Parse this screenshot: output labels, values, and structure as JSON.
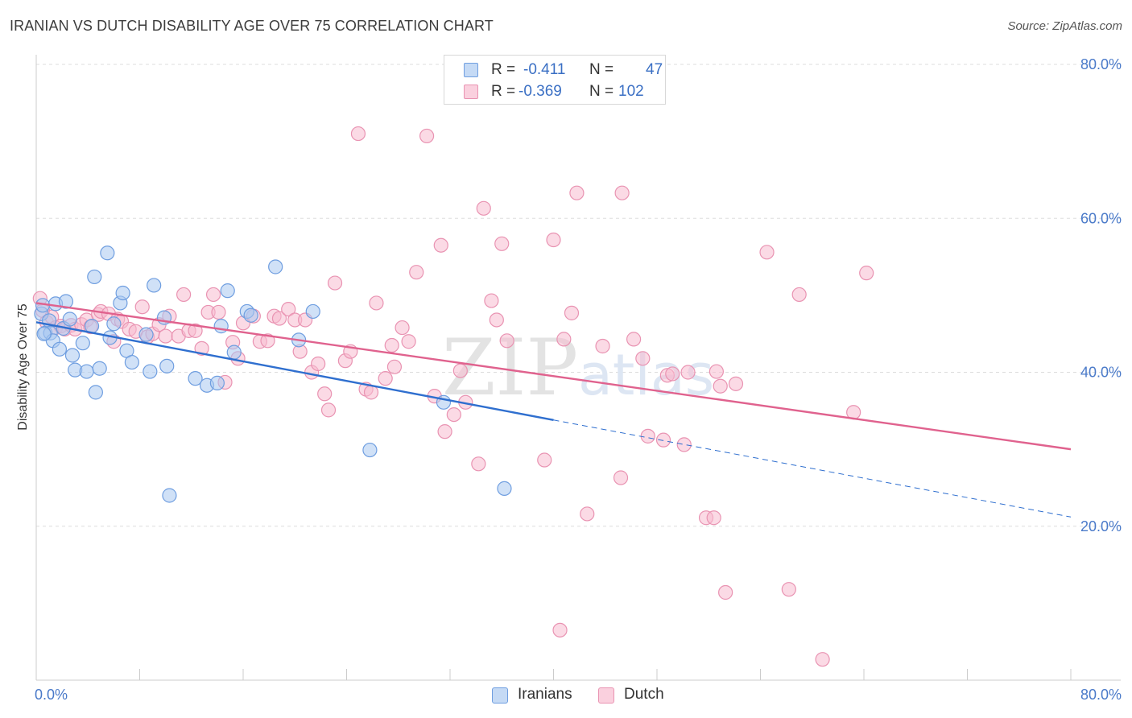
{
  "title": "IRANIAN VS DUTCH DISABILITY AGE OVER 75 CORRELATION CHART",
  "source": "Source: ZipAtlas.com",
  "watermark": "ZIPatlas",
  "colors": {
    "iranians_fill": "#aac8f0",
    "iranians_stroke": "#6f9ee0",
    "iranians_line": "#2f6fcf",
    "dutch_fill": "#f7bcd0",
    "dutch_stroke": "#e993b2",
    "dutch_line": "#e0628e",
    "tick": "#4a7ac9",
    "grid": "#dddddd"
  },
  "legend": {
    "iranians": {
      "r_label": "R =",
      "r_value": "-0.411",
      "n_label": "N =",
      "n_value": "47"
    },
    "dutch": {
      "r_label": "R =",
      "r_value": "-0.369",
      "n_label": "N =",
      "n_value": "102"
    }
  },
  "chart_data": {
    "type": "scatter",
    "title": "IRANIAN VS DUTCH DISABILITY AGE OVER 75 CORRELATION CHART",
    "xlabel": "",
    "ylabel": "Disability Age Over 75",
    "xlim": [
      0,
      80
    ],
    "ylim": [
      0,
      80
    ],
    "x_tick_labels": [
      "0.0%",
      "80.0%"
    ],
    "y_ticks": [
      20,
      40,
      60,
      80
    ],
    "y_tick_labels": [
      "20.0%",
      "40.0%",
      "60.0%",
      "80.0%"
    ],
    "grid": true,
    "legend_position": "top-center",
    "series": [
      {
        "name": "Iranians",
        "r": -0.411,
        "n": 47,
        "trend": {
          "x0": 0,
          "y0": 46.5,
          "x_solid_end": 40,
          "y_solid_end": 33.8,
          "x1": 80,
          "y1": 21.2
        },
        "points": [
          [
            0.4,
            47.6
          ],
          [
            0.5,
            48.7
          ],
          [
            0.7,
            45.1
          ],
          [
            1.0,
            46.7
          ],
          [
            1.1,
            45.1
          ],
          [
            1.3,
            44.1
          ],
          [
            1.5,
            48.9
          ],
          [
            1.8,
            43.0
          ],
          [
            2.1,
            45.7
          ],
          [
            2.3,
            49.2
          ],
          [
            2.6,
            46.9
          ],
          [
            2.8,
            42.2
          ],
          [
            3.0,
            40.3
          ],
          [
            3.6,
            43.8
          ],
          [
            3.9,
            40.1
          ],
          [
            4.3,
            46.0
          ],
          [
            4.5,
            52.4
          ],
          [
            4.6,
            37.4
          ],
          [
            4.9,
            40.5
          ],
          [
            5.5,
            55.5
          ],
          [
            5.7,
            44.5
          ],
          [
            6.0,
            46.3
          ],
          [
            6.5,
            49.0
          ],
          [
            6.7,
            50.3
          ],
          [
            7.0,
            42.8
          ],
          [
            7.4,
            41.3
          ],
          [
            8.5,
            44.9
          ],
          [
            8.8,
            40.1
          ],
          [
            9.1,
            51.3
          ],
          [
            9.9,
            47.1
          ],
          [
            10.1,
            40.8
          ],
          [
            10.3,
            24.0
          ],
          [
            12.3,
            39.2
          ],
          [
            13.2,
            38.3
          ],
          [
            14.0,
            38.6
          ],
          [
            14.3,
            46.0
          ],
          [
            14.8,
            50.6
          ],
          [
            15.3,
            42.6
          ],
          [
            16.3,
            47.9
          ],
          [
            16.6,
            47.4
          ],
          [
            18.5,
            53.7
          ],
          [
            20.3,
            44.2
          ],
          [
            21.4,
            47.9
          ],
          [
            25.8,
            29.9
          ],
          [
            31.5,
            36.1
          ],
          [
            36.2,
            24.9
          ],
          [
            0.6,
            45.0
          ]
        ]
      },
      {
        "name": "Dutch",
        "r": -0.369,
        "n": 102,
        "trend": {
          "x0": 0,
          "y0": 49.0,
          "x1": 80,
          "y1": 30.0
        },
        "points": [
          [
            0.3,
            49.6
          ],
          [
            0.5,
            48.0
          ],
          [
            0.8,
            46.5
          ],
          [
            1.2,
            47.2
          ],
          [
            1.5,
            45.8
          ],
          [
            1.9,
            46.0
          ],
          [
            2.2,
            45.6
          ],
          [
            2.7,
            46.1
          ],
          [
            3.0,
            45.6
          ],
          [
            3.5,
            46.2
          ],
          [
            3.9,
            46.8
          ],
          [
            4.2,
            45.9
          ],
          [
            4.8,
            47.5
          ],
          [
            5.0,
            47.9
          ],
          [
            5.6,
            47.6
          ],
          [
            6.0,
            44.0
          ],
          [
            6.3,
            46.9
          ],
          [
            6.6,
            46.6
          ],
          [
            7.2,
            45.6
          ],
          [
            7.7,
            45.3
          ],
          [
            8.2,
            48.5
          ],
          [
            8.6,
            44.6
          ],
          [
            9.0,
            45.0
          ],
          [
            9.5,
            46.2
          ],
          [
            10.0,
            44.7
          ],
          [
            10.3,
            47.3
          ],
          [
            11.0,
            44.7
          ],
          [
            11.4,
            50.1
          ],
          [
            11.8,
            45.4
          ],
          [
            12.3,
            45.4
          ],
          [
            12.8,
            43.1
          ],
          [
            13.3,
            47.8
          ],
          [
            13.7,
            50.1
          ],
          [
            14.1,
            47.8
          ],
          [
            14.6,
            38.7
          ],
          [
            15.2,
            43.9
          ],
          [
            15.6,
            41.8
          ],
          [
            16.0,
            46.4
          ],
          [
            16.8,
            47.3
          ],
          [
            17.3,
            44.0
          ],
          [
            17.9,
            44.1
          ],
          [
            18.4,
            47.3
          ],
          [
            18.8,
            47.0
          ],
          [
            19.5,
            48.2
          ],
          [
            20.0,
            46.8
          ],
          [
            20.4,
            42.7
          ],
          [
            20.8,
            46.8
          ],
          [
            21.3,
            40.0
          ],
          [
            21.8,
            41.1
          ],
          [
            22.3,
            37.2
          ],
          [
            22.6,
            35.1
          ],
          [
            23.1,
            51.6
          ],
          [
            23.9,
            41.5
          ],
          [
            24.3,
            42.7
          ],
          [
            24.9,
            71.0
          ],
          [
            25.5,
            37.8
          ],
          [
            25.9,
            37.4
          ],
          [
            26.3,
            49.0
          ],
          [
            27.0,
            39.2
          ],
          [
            27.5,
            43.5
          ],
          [
            27.7,
            40.7
          ],
          [
            28.3,
            45.8
          ],
          [
            28.8,
            44.0
          ],
          [
            29.4,
            53.0
          ],
          [
            30.2,
            70.7
          ],
          [
            30.8,
            36.9
          ],
          [
            31.3,
            56.5
          ],
          [
            31.6,
            32.3
          ],
          [
            32.3,
            34.5
          ],
          [
            32.8,
            40.2
          ],
          [
            33.2,
            36.1
          ],
          [
            34.2,
            28.1
          ],
          [
            34.6,
            61.3
          ],
          [
            35.2,
            49.3
          ],
          [
            35.6,
            46.8
          ],
          [
            36.0,
            56.7
          ],
          [
            36.4,
            44.1
          ],
          [
            39.3,
            28.6
          ],
          [
            40.0,
            57.2
          ],
          [
            40.8,
            44.3
          ],
          [
            41.4,
            47.7
          ],
          [
            41.8,
            63.3
          ],
          [
            42.6,
            21.6
          ],
          [
            43.8,
            43.4
          ],
          [
            45.2,
            26.3
          ],
          [
            45.3,
            63.3
          ],
          [
            46.2,
            44.3
          ],
          [
            46.9,
            41.8
          ],
          [
            47.3,
            31.7
          ],
          [
            48.5,
            31.2
          ],
          [
            48.8,
            39.6
          ],
          [
            49.2,
            39.8
          ],
          [
            50.1,
            30.6
          ],
          [
            50.4,
            40.0
          ],
          [
            51.8,
            21.1
          ],
          [
            52.4,
            21.1
          ],
          [
            52.6,
            40.1
          ],
          [
            52.9,
            38.2
          ],
          [
            53.3,
            11.4
          ],
          [
            54.1,
            38.5
          ],
          [
            56.5,
            55.6
          ],
          [
            58.2,
            11.8
          ],
          [
            59.0,
            50.1
          ],
          [
            60.8,
            2.7
          ],
          [
            63.2,
            34.8
          ],
          [
            64.2,
            52.9
          ],
          [
            40.5,
            6.5
          ]
        ]
      }
    ]
  },
  "bottom_legend": [
    {
      "name": "Iranians"
    },
    {
      "name": "Dutch"
    }
  ]
}
